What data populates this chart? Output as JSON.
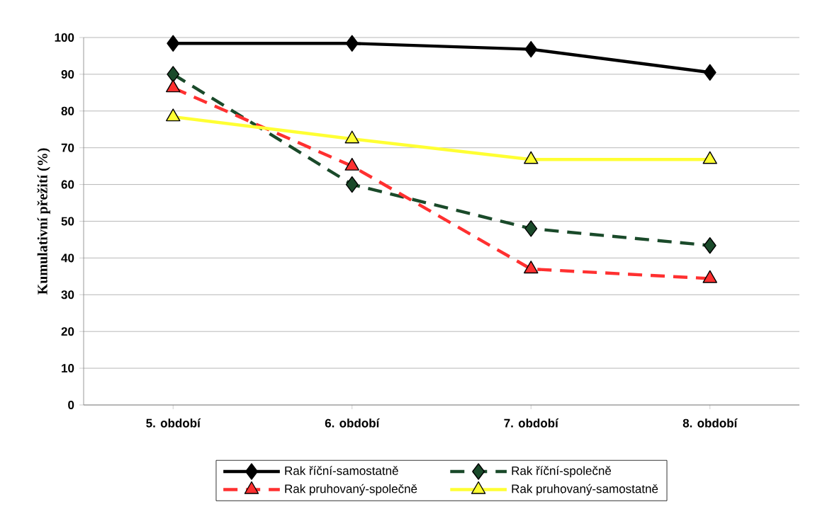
{
  "chart_data": {
    "type": "line",
    "ylabel": "Kumulativní přežití (%)",
    "categories": [
      "5. období",
      "6. období",
      "7. období",
      "8. období"
    ],
    "series": [
      {
        "name": "Rak říční-samostatně",
        "color": "#000000",
        "values": [
          98.4,
          98.4,
          96.8,
          90.5
        ],
        "marker": "diamond",
        "line_style": "solid"
      },
      {
        "name": "Rak říční-společně",
        "color": "#1a4a2a",
        "values": [
          90,
          60,
          48,
          43.4
        ],
        "marker": "diamond",
        "line_style": "dashed"
      },
      {
        "name": "Rak pruhovaný-společně",
        "color": "#ff3030",
        "values": [
          86.3,
          65,
          37,
          34.4
        ],
        "marker": "triangle",
        "line_style": "dashed"
      },
      {
        "name": "Rak pruhovaný-samostatně",
        "color": "#ffff33",
        "values": [
          78.4,
          72.4,
          66.8,
          66.8
        ],
        "marker": "triangle",
        "line_style": "solid"
      }
    ],
    "ylim": [
      0,
      100
    ],
    "yticks": [
      0,
      10,
      20,
      30,
      40,
      50,
      60,
      70,
      80,
      90,
      100
    ],
    "grid": "y",
    "legend": "bottom"
  }
}
